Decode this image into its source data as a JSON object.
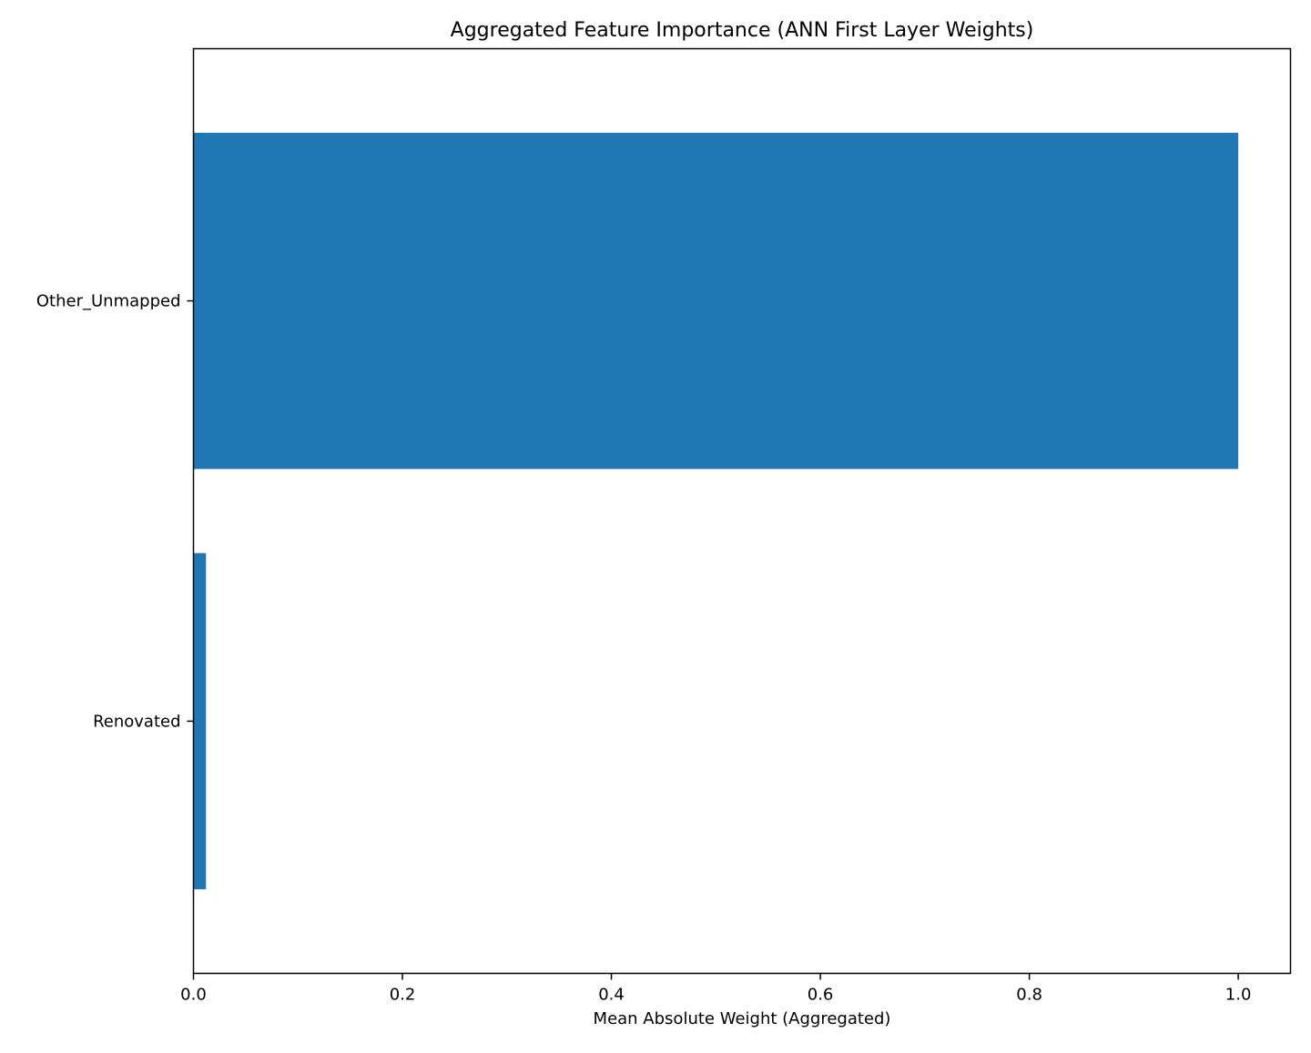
{
  "chart_data": {
    "type": "bar",
    "orientation": "horizontal",
    "title": "Aggregated Feature Importance (ANN First Layer Weights)",
    "xlabel": "Mean Absolute Weight (Aggregated)",
    "ylabel": "",
    "categories": [
      "Other_Unmapped",
      "Renovated"
    ],
    "values": [
      1.0,
      0.012
    ],
    "xlim": [
      0.0,
      1.05
    ],
    "xticks": [
      0.0,
      0.2,
      0.4,
      0.6,
      0.8,
      1.0
    ],
    "xtick_labels": [
      "0.0",
      "0.2",
      "0.4",
      "0.6",
      "0.8",
      "1.0"
    ],
    "grid": false,
    "bar_color": "#1f77b4"
  }
}
